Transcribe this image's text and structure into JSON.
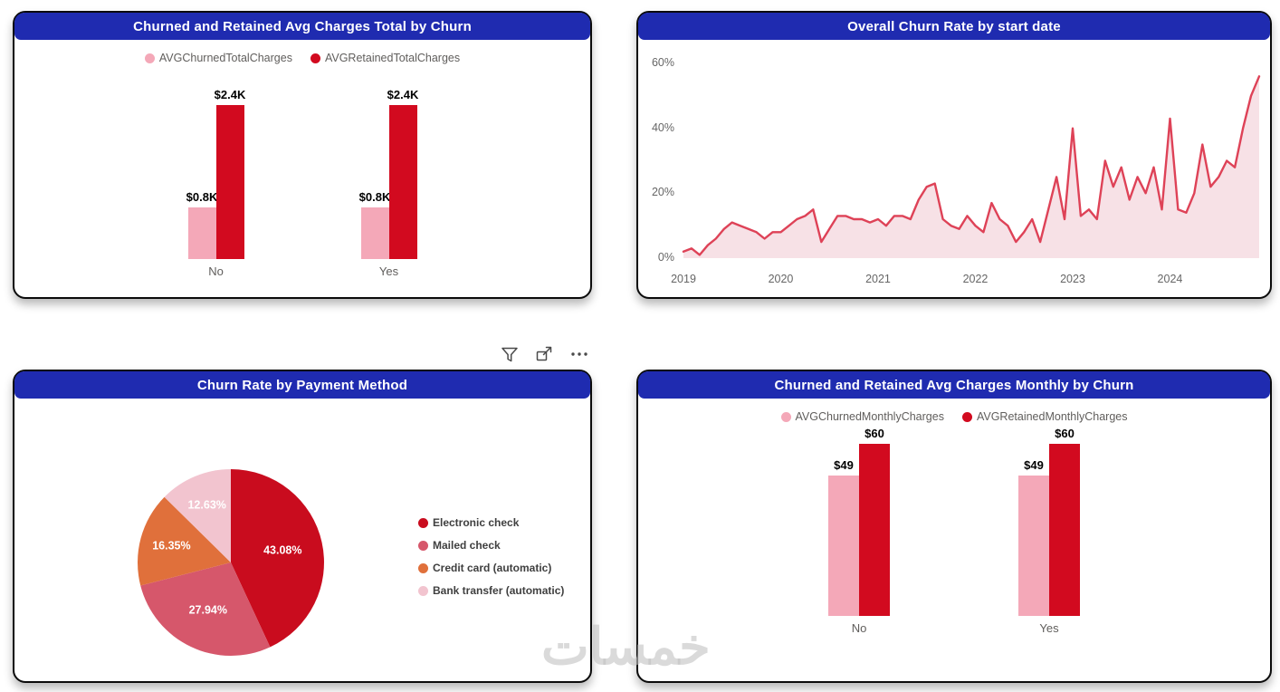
{
  "theme": {
    "header_bg": "#1f2bb0",
    "axis_text": "#666666",
    "legend_text": "#605e5c"
  },
  "watermark": "خمسات",
  "toolbar": {
    "icons": [
      "filter-icon",
      "focus-mode-icon",
      "more-options-icon"
    ]
  },
  "chart_data": [
    {
      "id": "avg-total-charges-by-churn",
      "type": "bar",
      "title": "Churned and Retained Avg Charges Total by Churn",
      "categories": [
        "No",
        "Yes"
      ],
      "series": [
        {
          "name": "AVGChurnedTotalCharges",
          "color": "#f4a8b8",
          "values": [
            0.8,
            0.8
          ],
          "labels": [
            "$0.8K",
            "$0.8K"
          ]
        },
        {
          "name": "AVGRetainedTotalCharges",
          "color": "#d20a1f",
          "values": [
            2.4,
            2.4
          ],
          "labels": [
            "$2.4K",
            "$2.4K"
          ]
        }
      ],
      "ylim": [
        0,
        2.4
      ],
      "ylabel": "",
      "xlabel": ""
    },
    {
      "id": "overall-churn-rate-by-start-date",
      "type": "area",
      "title": "Overall Churn Rate by start date",
      "line_color": "#de4257",
      "fill_color": "#f7e1e6",
      "ylim": [
        0,
        60
      ],
      "yticks": [
        {
          "label": "0%",
          "value": 0
        },
        {
          "label": "20%",
          "value": 20
        },
        {
          "label": "40%",
          "value": 40
        },
        {
          "label": "60%",
          "value": 60
        }
      ],
      "xticks": [
        "2019",
        "2020",
        "2021",
        "2022",
        "2023",
        "2024"
      ],
      "xtick_indices": [
        0,
        12,
        24,
        36,
        48,
        60
      ],
      "values": [
        2,
        3,
        1,
        4,
        6,
        9,
        11,
        10,
        9,
        8,
        6,
        8,
        8,
        10,
        12,
        13,
        15,
        5,
        9,
        13,
        13,
        12,
        12,
        11,
        12,
        10,
        13,
        13,
        12,
        18,
        22,
        23,
        12,
        10,
        9,
        13,
        10,
        8,
        17,
        12,
        10,
        5,
        8,
        12,
        5,
        15,
        25,
        12,
        40,
        13,
        15,
        12,
        30,
        22,
        28,
        18,
        25,
        20,
        28,
        15,
        43,
        15,
        14,
        20,
        35,
        22,
        25,
        30,
        28,
        40,
        50,
        56
      ]
    },
    {
      "id": "churn-rate-by-payment-method",
      "type": "pie",
      "title": "Churn Rate by Payment Method",
      "slices": [
        {
          "label": "Electronic check",
          "value": 43.08,
          "display": "43.08%",
          "color": "#c90c1e"
        },
        {
          "label": "Mailed check",
          "value": 27.94,
          "display": "27.94%",
          "color": "#d6576b"
        },
        {
          "label": "Credit card (automatic)",
          "value": 16.35,
          "display": "16.35%",
          "color": "#e0703b"
        },
        {
          "label": "Bank transfer (automatic)",
          "value": 12.63,
          "display": "12.63%",
          "color": "#f2c4cf"
        }
      ],
      "legend_position": "right"
    },
    {
      "id": "avg-monthly-charges-by-churn",
      "type": "bar",
      "title": "Churned and Retained Avg Charges Monthly by Churn",
      "categories": [
        "No",
        "Yes"
      ],
      "series": [
        {
          "name": "AVGChurnedMonthlyCharges",
          "color": "#f4a8b8",
          "values": [
            49,
            49
          ],
          "labels": [
            "$49",
            "$49"
          ]
        },
        {
          "name": "AVGRetainedMonthlyCharges",
          "color": "#d20a1f",
          "values": [
            60,
            60
          ],
          "labels": [
            "$60",
            "$60"
          ]
        }
      ],
      "ylim": [
        0,
        60
      ],
      "ylabel": "",
      "xlabel": ""
    }
  ]
}
